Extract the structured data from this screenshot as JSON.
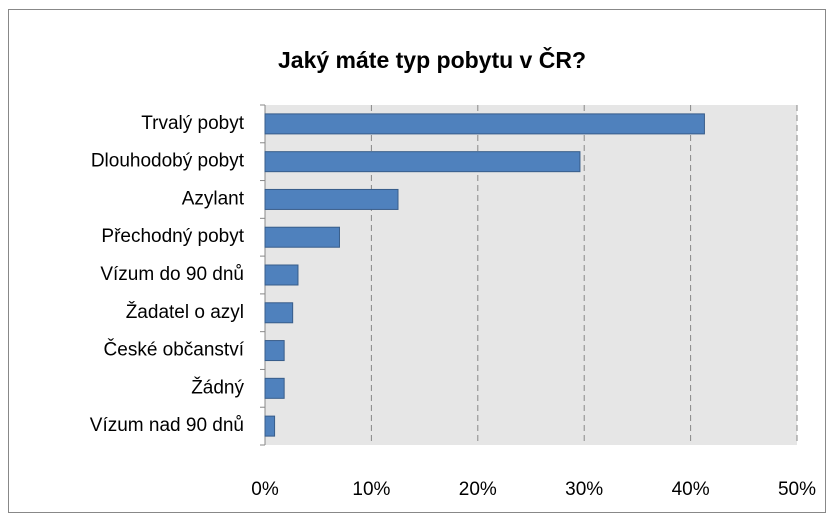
{
  "chart_data": {
    "type": "hbar",
    "title": "Jaký máte typ pobytu v ČR?",
    "categories": [
      "Trvalý pobyt",
      "Dlouhodobý pobyt",
      "Azylant",
      "Přechodný pobyt",
      "Vízum do 90 dnů",
      "Žadatel o azyl",
      "České občanství",
      "Žádný",
      "Vízum nad 90 dnů"
    ],
    "values": [
      41.3,
      29.6,
      12.5,
      7.0,
      3.1,
      2.6,
      1.8,
      1.8,
      0.9
    ],
    "color": "#4f81bd",
    "xlim": [
      0,
      50
    ],
    "xticks": [
      {
        "value": 0,
        "label": "0%"
      },
      {
        "value": 10,
        "label": "10%"
      },
      {
        "value": 20,
        "label": "20%"
      },
      {
        "value": 30,
        "label": "30%"
      },
      {
        "value": 40,
        "label": "40%"
      },
      {
        "value": 50,
        "label": "50%"
      }
    ],
    "grid": true
  }
}
